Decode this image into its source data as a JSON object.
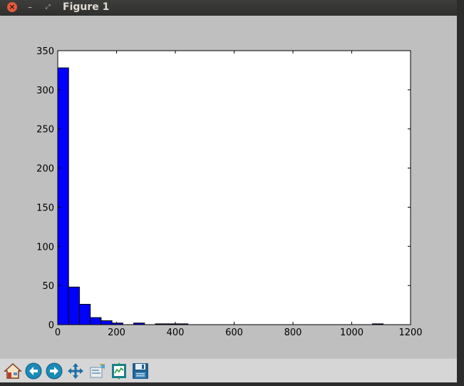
{
  "window": {
    "title": "Figure 1",
    "close_glyph": "×",
    "minimize_glyph": "–",
    "maximize_glyph": "⤢"
  },
  "toolbar": {
    "buttons": [
      {
        "name": "home-button",
        "icon": "home-icon"
      },
      {
        "name": "back-button",
        "icon": "arrow-left-icon"
      },
      {
        "name": "forward-button",
        "icon": "arrow-right-icon"
      },
      {
        "name": "pan-button",
        "icon": "move-icon"
      },
      {
        "name": "zoom-button",
        "icon": "zoom-rect-icon"
      },
      {
        "name": "subplots-button",
        "icon": "subplots-icon"
      },
      {
        "name": "save-button",
        "icon": "floppy-icon"
      }
    ]
  },
  "colors": {
    "bar_fill": "#0000ff",
    "bar_edge": "#000000",
    "axes_bg": "#ffffff",
    "figure_bg": "#bfbfbf"
  },
  "chart_data": {
    "type": "bar",
    "title": "",
    "xlabel": "",
    "ylabel": "",
    "xlim": [
      0,
      1200
    ],
    "ylim": [
      0,
      350
    ],
    "xticks": [
      "0",
      "200",
      "400",
      "600",
      "800",
      "1000",
      "1200"
    ],
    "yticks": [
      "0",
      "50",
      "100",
      "150",
      "200",
      "250",
      "300",
      "350"
    ],
    "bin_width": 36.9,
    "bins": [
      {
        "x0": 0,
        "count": 328
      },
      {
        "x0": 36.9,
        "count": 48
      },
      {
        "x0": 73.8,
        "count": 26
      },
      {
        "x0": 110.7,
        "count": 9
      },
      {
        "x0": 147.6,
        "count": 5
      },
      {
        "x0": 184.5,
        "count": 2
      },
      {
        "x0": 258.3,
        "count": 2
      },
      {
        "x0": 332.1,
        "count": 1
      },
      {
        "x0": 369.0,
        "count": 1
      },
      {
        "x0": 405.9,
        "count": 1
      },
      {
        "x0": 1070.1,
        "count": 1
      }
    ],
    "grid": false,
    "legend": "none"
  }
}
